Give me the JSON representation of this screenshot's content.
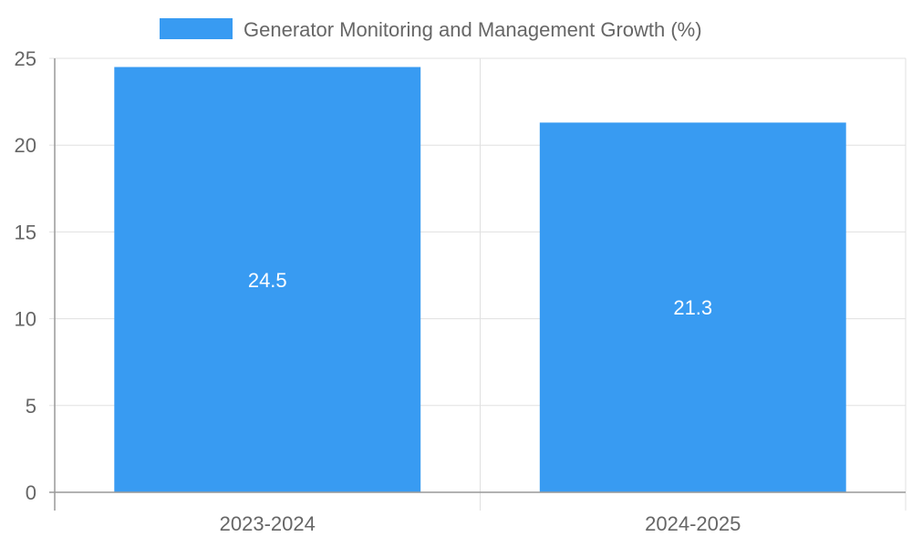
{
  "chart_data": {
    "type": "bar",
    "categories": [
      "2023-2024",
      "2024-2025"
    ],
    "series": [
      {
        "name": "Generator Monitoring and Management Growth (%)",
        "values": [
          24.5,
          21.3
        ],
        "color": "#389BF2"
      }
    ],
    "title": "",
    "xlabel": "",
    "ylabel": "",
    "ylim": [
      0,
      25
    ],
    "yticks": [
      0,
      5,
      10,
      15,
      20,
      25
    ],
    "grid": true,
    "legend_position": "top-center",
    "data_labels": true
  },
  "colors": {
    "grid": "#e0e0e0",
    "axis": "#999999",
    "text": "#666666",
    "label": "#ffffff"
  }
}
